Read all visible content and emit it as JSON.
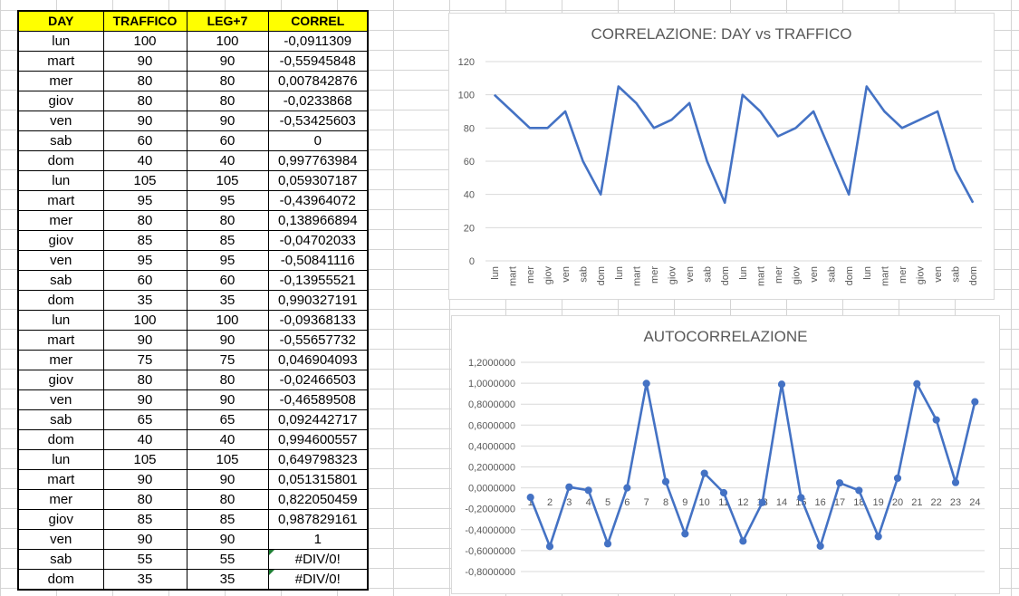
{
  "sheet": {
    "headers": [
      "DAY",
      "TRAFFICO",
      "LEG+7",
      "CORREL"
    ],
    "rows": [
      [
        "lun",
        "100",
        "100",
        "-0,0911309"
      ],
      [
        "mart",
        "90",
        "90",
        "-0,55945848"
      ],
      [
        "mer",
        "80",
        "80",
        "0,007842876"
      ],
      [
        "giov",
        "80",
        "80",
        "-0,0233868"
      ],
      [
        "ven",
        "90",
        "90",
        "-0,53425603"
      ],
      [
        "sab",
        "60",
        "60",
        "0"
      ],
      [
        "dom",
        "40",
        "40",
        "0,997763984"
      ],
      [
        "lun",
        "105",
        "105",
        "0,059307187"
      ],
      [
        "mart",
        "95",
        "95",
        "-0,43964072"
      ],
      [
        "mer",
        "80",
        "80",
        "0,138966894"
      ],
      [
        "giov",
        "85",
        "85",
        "-0,04702033"
      ],
      [
        "ven",
        "95",
        "95",
        "-0,50841116"
      ],
      [
        "sab",
        "60",
        "60",
        "-0,13955521"
      ],
      [
        "dom",
        "35",
        "35",
        "0,990327191"
      ],
      [
        "lun",
        "100",
        "100",
        "-0,09368133"
      ],
      [
        "mart",
        "90",
        "90",
        "-0,55657732"
      ],
      [
        "mer",
        "75",
        "75",
        "0,046904093"
      ],
      [
        "giov",
        "80",
        "80",
        "-0,02466503"
      ],
      [
        "ven",
        "90",
        "90",
        "-0,46589508"
      ],
      [
        "sab",
        "65",
        "65",
        "0,092442717"
      ],
      [
        "dom",
        "40",
        "40",
        "0,994600557"
      ],
      [
        "lun",
        "105",
        "105",
        "0,649798323"
      ],
      [
        "mart",
        "90",
        "90",
        "0,051315801"
      ],
      [
        "mer",
        "80",
        "80",
        "0,822050459"
      ],
      [
        "giov",
        "85",
        "85",
        "0,987829161"
      ],
      [
        "ven",
        "90",
        "90",
        "1"
      ],
      [
        "sab",
        "55",
        "55",
        "#DIV/0!"
      ],
      [
        "dom",
        "35",
        "35",
        "#DIV/0!"
      ]
    ],
    "error_value": "#DIV/0!"
  },
  "colors": {
    "header_fill": "#ffff00",
    "series": "#4472c4",
    "error_flag": "#1e7e34"
  },
  "chart_data": [
    {
      "type": "line",
      "title": "CORRELAZIONE: DAY vs TRAFFICO",
      "categories": [
        "lun",
        "mart",
        "mer",
        "giov",
        "ven",
        "sab",
        "dom",
        "lun",
        "mart",
        "mer",
        "giov",
        "ven",
        "sab",
        "dom",
        "lun",
        "mart",
        "mer",
        "giov",
        "ven",
        "sab",
        "dom",
        "lun",
        "mart",
        "mer",
        "giov",
        "ven",
        "sab",
        "dom"
      ],
      "values": [
        100,
        90,
        80,
        80,
        90,
        60,
        40,
        105,
        95,
        80,
        85,
        95,
        60,
        35,
        100,
        90,
        75,
        80,
        90,
        65,
        40,
        105,
        90,
        80,
        85,
        90,
        55,
        35
      ],
      "yticks": [
        "0",
        "20",
        "40",
        "60",
        "80",
        "100",
        "120"
      ],
      "ylim": [
        0,
        120
      ],
      "grid": true,
      "markers": false
    },
    {
      "type": "line",
      "title": "AUTOCORRELAZIONE",
      "categories": [
        "1",
        "2",
        "3",
        "4",
        "5",
        "6",
        "7",
        "8",
        "9",
        "10",
        "11",
        "12",
        "13",
        "14",
        "15",
        "16",
        "17",
        "18",
        "19",
        "20",
        "21",
        "22",
        "23",
        "24"
      ],
      "values": [
        -0.0911309,
        -0.55945848,
        0.007842876,
        -0.0233868,
        -0.53425603,
        0,
        0.997763984,
        0.059307187,
        -0.43964072,
        0.138966894,
        -0.04702033,
        -0.50841116,
        -0.13955521,
        0.990327191,
        -0.09368133,
        -0.55657732,
        0.046904093,
        -0.02466503,
        -0.46589508,
        0.092442717,
        0.994600557,
        0.649798323,
        0.051315801,
        0.822050459
      ],
      "yticks": [
        "-0,8000000",
        "-0,6000000",
        "-0,4000000",
        "-0,2000000",
        "0,0000000",
        "0,2000000",
        "0,4000000",
        "0,6000000",
        "0,8000000",
        "1,0000000",
        "1,2000000"
      ],
      "ylim": [
        -0.8,
        1.2
      ],
      "grid": true,
      "markers": true
    }
  ]
}
